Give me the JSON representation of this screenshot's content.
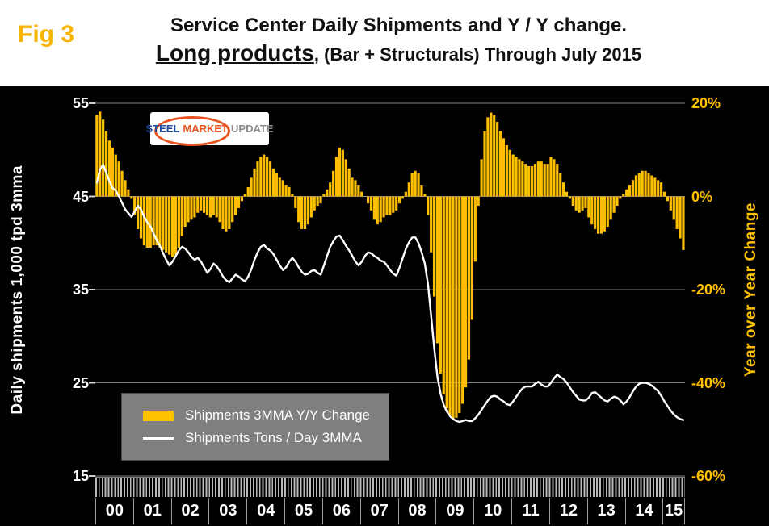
{
  "fig_label": "Fig 3",
  "title": {
    "line1": "Service Center Daily Shipments and Y / Y change.",
    "line2_em": "Long products",
    "line2_rest": ", (Bar + Structurals) Through July 2015"
  },
  "axes": {
    "left_title": "Daily shipments 1,000 tpd 3mma",
    "right_title": "Year over Year Change",
    "left_ticks": [
      "55",
      "45",
      "35",
      "25",
      "15"
    ],
    "right_ticks": [
      "20%",
      "0%",
      "-20%",
      "-40%",
      "-60%"
    ]
  },
  "legend": {
    "bar_label": "Shipments 3MMA Y/Y Change",
    "line_label": "Shipments Tons / Day 3MMA"
  },
  "logo": {
    "word1": "STEEL",
    "word2": "MARKET",
    "word3": "UPDATE"
  },
  "colors": {
    "gold": "#FFC000",
    "fig_label_gold": "#F5B400",
    "line_white": "#FFFFFF",
    "grid_gray": "#7F7F7F",
    "legend_bg": "#7F7F7F",
    "plot_bg": "#000000",
    "header_bg": "#FFFFFF"
  },
  "chart_data": {
    "type": "combo",
    "subtype": [
      "bar",
      "line"
    ],
    "x_start": "2000-01",
    "x_end": "2015-07",
    "grid": "horizontal",
    "legend_position": "inside-lower-left",
    "year_labels": [
      "00",
      "01",
      "02",
      "03",
      "04",
      "05",
      "06",
      "07",
      "08",
      "09",
      "10",
      "11",
      "12",
      "13",
      "14",
      "15"
    ],
    "months_per_year": [
      12,
      12,
      12,
      12,
      12,
      12,
      12,
      12,
      12,
      12,
      12,
      12,
      12,
      12,
      12,
      7
    ],
    "left_axis": {
      "label": "Daily shipments 1,000 tpd 3mma",
      "min": 15,
      "max": 55,
      "ticks": [
        55,
        45,
        35,
        25,
        15
      ]
    },
    "right_axis": {
      "label": "Year over Year Change",
      "min": -60,
      "max": 20,
      "ticks": [
        20,
        0,
        -20,
        -40,
        -60
      ],
      "unit": "%"
    },
    "series": [
      {
        "name": "Shipments 3MMA Y/Y Change",
        "type": "bar",
        "axis": "right",
        "color": "#FFC000",
        "values": [
          17.5,
          18.2,
          16.5,
          14,
          12,
          10.5,
          9,
          7.5,
          5.5,
          3.5,
          1.5,
          -0.5,
          -4,
          -7,
          -9,
          -10.5,
          -11,
          -11,
          -10.5,
          -10.5,
          -11,
          -11.5,
          -12,
          -12.5,
          -13,
          -12.5,
          -11,
          -8.5,
          -6.5,
          -5.5,
          -5,
          -4.5,
          -3.5,
          -3,
          -3.5,
          -4,
          -4.5,
          -4,
          -4.5,
          -5.5,
          -7,
          -7.5,
          -7,
          -5.5,
          -4,
          -2.5,
          -1,
          0.5,
          2,
          4,
          6,
          7.5,
          8.5,
          9,
          8.5,
          7.5,
          6,
          5,
          4,
          3.5,
          2.5,
          2,
          0.5,
          -2.5,
          -5.5,
          -7,
          -7,
          -6,
          -4.5,
          -3,
          -2,
          -1.5,
          0.5,
          1.5,
          3,
          5.5,
          8.5,
          10.5,
          10,
          8,
          6,
          4,
          3.5,
          2.5,
          1,
          0,
          -1.5,
          -3,
          -5,
          -6,
          -5.5,
          -4.5,
          -4,
          -4,
          -3.5,
          -3,
          -1.5,
          -0.5,
          1,
          3,
          5,
          5.5,
          5,
          2.5,
          0.5,
          -4,
          -12,
          -21.5,
          -31.5,
          -38,
          -42.5,
          -45.5,
          -47,
          -48,
          -47.5,
          -46.5,
          -44.5,
          -41,
          -35,
          -26.5,
          -14,
          -2,
          8,
          14,
          17,
          18,
          17.5,
          16,
          14,
          12.5,
          11,
          10,
          9,
          8.5,
          8,
          7.5,
          7,
          6.5,
          6.5,
          7,
          7.5,
          7.5,
          7,
          7,
          8.5,
          8,
          7,
          5,
          3,
          1,
          -0.5,
          -2,
          -3,
          -3.5,
          -3,
          -2.5,
          -4.5,
          -6,
          -7,
          -8,
          -8,
          -7.5,
          -6.5,
          -5,
          -3.5,
          -2,
          -0.5,
          0.5,
          1.5,
          2.5,
          3.5,
          4.5,
          5,
          5.5,
          5.5,
          5,
          4.5,
          4,
          3.5,
          3,
          1,
          -1,
          -3,
          -5,
          -7,
          -9,
          -11.5
        ]
      },
      {
        "name": "Shipments Tons / Day 3MMA",
        "type": "line",
        "axis": "left",
        "color": "#FFFFFF",
        "values": [
          46.5,
          47.9,
          48.4,
          47.5,
          46.6,
          45.9,
          45.6,
          45,
          44.3,
          43.6,
          43.2,
          42.8,
          43.4,
          44,
          43.6,
          42.8,
          42.2,
          41.8,
          41,
          40.3,
          39.7,
          38.9,
          38.2,
          37.6,
          38,
          38.6,
          39.2,
          39.6,
          39.4,
          39,
          38.5,
          38.2,
          38.4,
          38,
          37.4,
          36.8,
          37.2,
          37.8,
          37.5,
          37,
          36.4,
          36,
          35.8,
          36.2,
          36.6,
          36.4,
          36.1,
          35.9,
          36.4,
          37.2,
          38.2,
          39,
          39.6,
          39.8,
          39.4,
          39.2,
          38.8,
          38.2,
          37.6,
          37.1,
          37.4,
          38,
          38.4,
          38,
          37.4,
          36.9,
          36.6,
          36.7,
          37,
          37.1,
          36.8,
          36.6,
          37.6,
          38.6,
          39.6,
          40.2,
          40.7,
          40.8,
          40.3,
          39.7,
          39.2,
          38.6,
          38,
          37.6,
          38,
          38.6,
          39,
          38.9,
          38.6,
          38.4,
          38.1,
          38,
          37.6,
          37.1,
          36.7,
          36.5,
          37.4,
          38.4,
          39.4,
          40.1,
          40.6,
          40.6,
          40,
          39,
          37.8,
          35.6,
          32.2,
          28.6,
          25.6,
          23.8,
          22.6,
          21.9,
          21.4,
          21.1,
          20.9,
          20.8,
          20.9,
          21,
          20.9,
          20.9,
          21.2,
          21.6,
          22.1,
          22.6,
          23.1,
          23.5,
          23.6,
          23.5,
          23.2,
          23,
          22.7,
          22.6,
          23,
          23.5,
          24,
          24.4,
          24.6,
          24.6,
          24.6,
          24.9,
          25.1,
          24.8,
          24.6,
          24.6,
          25,
          25.5,
          25.9,
          25.6,
          25.4,
          25,
          24.5,
          24,
          23.6,
          23.2,
          23.1,
          23.1,
          23.4,
          23.9,
          24,
          23.7,
          23.4,
          23.1,
          23,
          23.3,
          23.5,
          23.4,
          23.1,
          22.7,
          23,
          23.5,
          24.1,
          24.6,
          24.9,
          25,
          25,
          24.9,
          24.7,
          24.4,
          24.1,
          23.6,
          23,
          22.5,
          22,
          21.6,
          21.3,
          21.1,
          21
        ]
      }
    ]
  }
}
